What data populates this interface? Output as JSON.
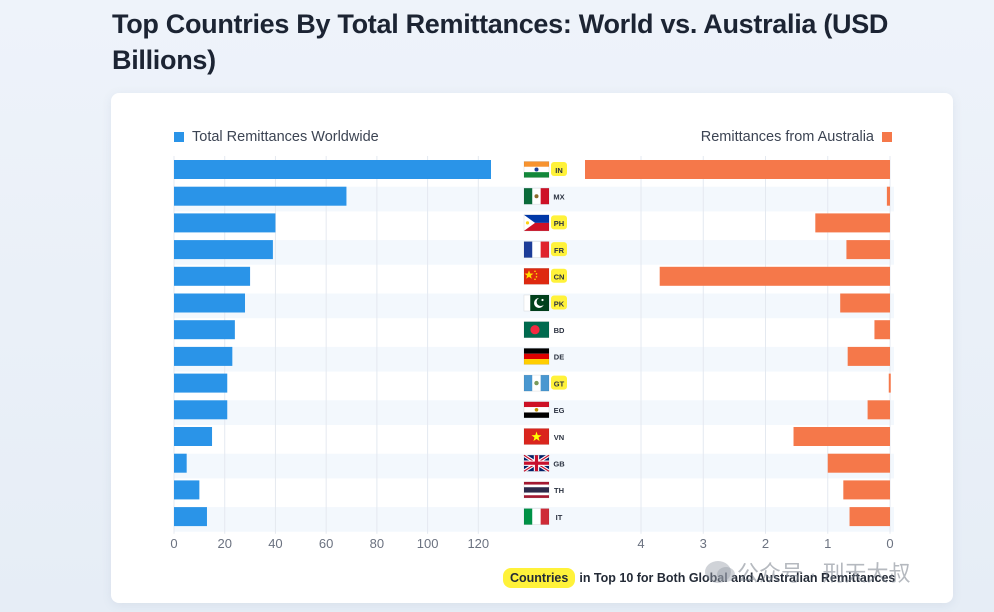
{
  "title": "Top Countries By Total Remittances: World vs. Australia (USD Billions)",
  "legend": {
    "left": "Total Remittances Worldwide",
    "right": "Remittances from Australia"
  },
  "colors": {
    "world": "#2a94e8",
    "australia": "#f5784a",
    "highlight": "#fff23a",
    "grid": "#e4e9f0",
    "stripe": "#f3f8fd"
  },
  "footnote": {
    "highlight": "Countries",
    "rest": "in Top 10 for Both Global and Australian Remittances"
  },
  "watermark": "公众号 · 刑天大叔",
  "chart_data": {
    "type": "bar",
    "layout": "butterfly",
    "categories": [
      "IN",
      "MX",
      "PH",
      "FR",
      "CN",
      "PK",
      "BD",
      "DE",
      "GT",
      "EG",
      "VN",
      "GB",
      "TH",
      "IT"
    ],
    "highlighted": [
      "IN",
      "PH",
      "FR",
      "CN",
      "PK",
      "GT"
    ],
    "series": [
      {
        "name": "Total Remittances Worldwide",
        "values": [
          125,
          68,
          40,
          39,
          30,
          28,
          24,
          23,
          21,
          21,
          15,
          5,
          10,
          13
        ],
        "xlim": [
          0,
          125
        ],
        "ticks": [
          "0",
          "20",
          "40",
          "60",
          "80",
          "100",
          "120"
        ]
      },
      {
        "name": "Remittances from Australia",
        "values": [
          4.9,
          0.05,
          1.2,
          0.7,
          3.7,
          0.8,
          0.25,
          0.68,
          0.02,
          0.36,
          1.55,
          1.0,
          0.75,
          0.65
        ],
        "xlim": [
          0,
          4.9
        ],
        "ticks": [
          "4",
          "3",
          "2",
          "1",
          "0"
        ]
      }
    ],
    "title": "Top Countries By Total Remittances: World vs. Australia (USD Billions)",
    "xlabel": "",
    "ylabel": ""
  }
}
